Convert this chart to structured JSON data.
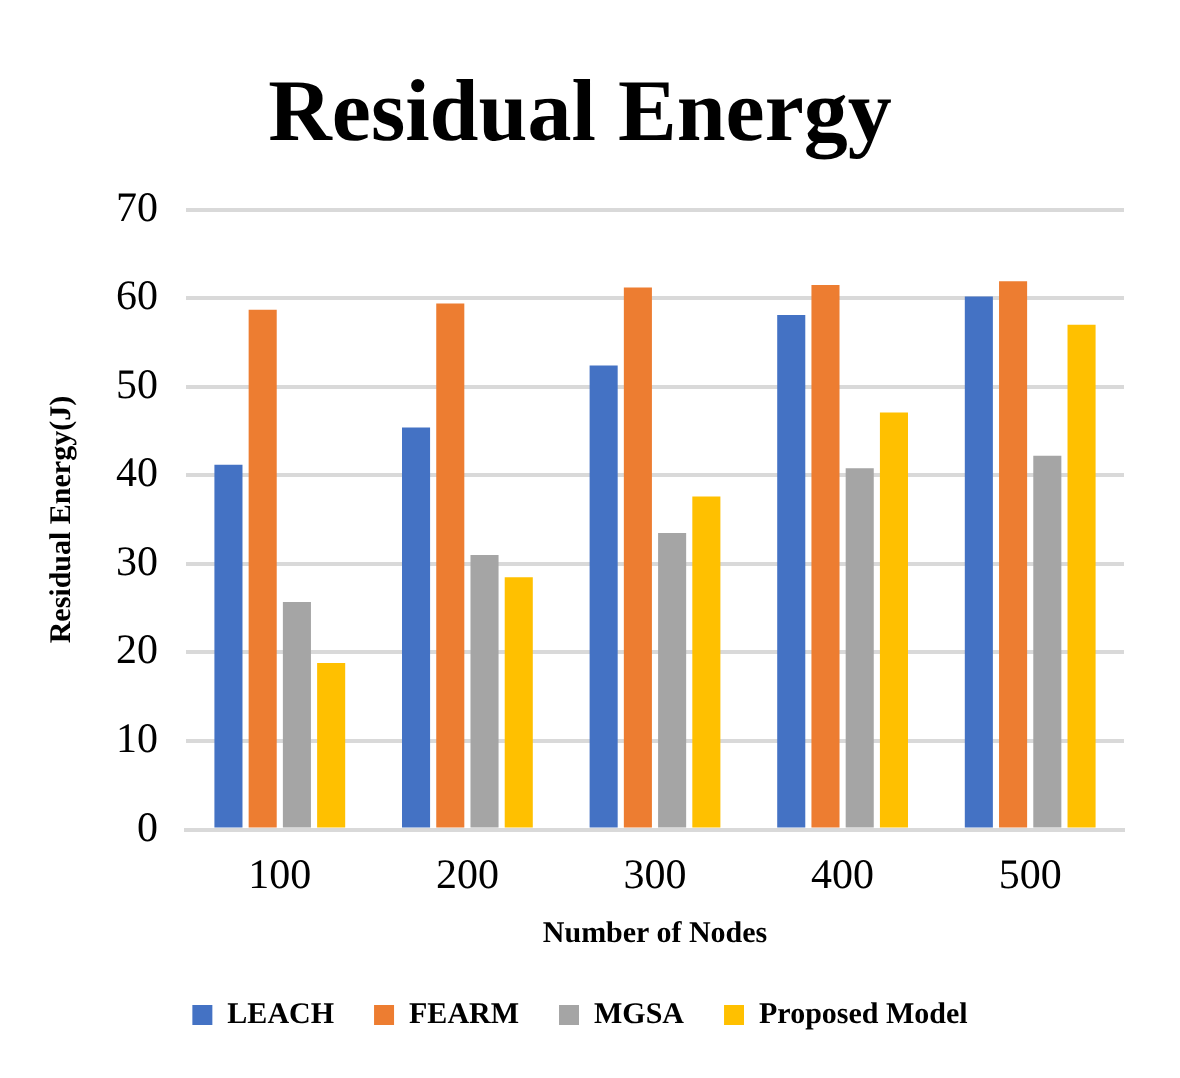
{
  "chart_data": {
    "type": "bar",
    "title": "Residual Energy",
    "xlabel": "Number of Nodes",
    "ylabel": "Residual Energy(J)",
    "categories": [
      "100",
      "200",
      "300",
      "400",
      "500"
    ],
    "series": [
      {
        "name": "LEACH",
        "color": "#4472c4",
        "values": [
          41.2,
          45.4,
          52.4,
          58.1,
          60.2
        ]
      },
      {
        "name": "FEARM",
        "color": "#ed7d31",
        "values": [
          58.7,
          59.4,
          61.2,
          61.5,
          61.9
        ]
      },
      {
        "name": "MGSA",
        "color": "#a5a5a5",
        "values": [
          25.7,
          31.0,
          33.5,
          40.8,
          42.2
        ]
      },
      {
        "name": "Proposed Model",
        "color": "#ffc000",
        "values": [
          18.8,
          28.5,
          37.6,
          47.1,
          57.0
        ]
      }
    ],
    "ylim": [
      0,
      70
    ],
    "yticks": [
      0,
      10,
      20,
      30,
      40,
      50,
      60,
      70
    ],
    "grid": "y",
    "legend": "bottom"
  }
}
